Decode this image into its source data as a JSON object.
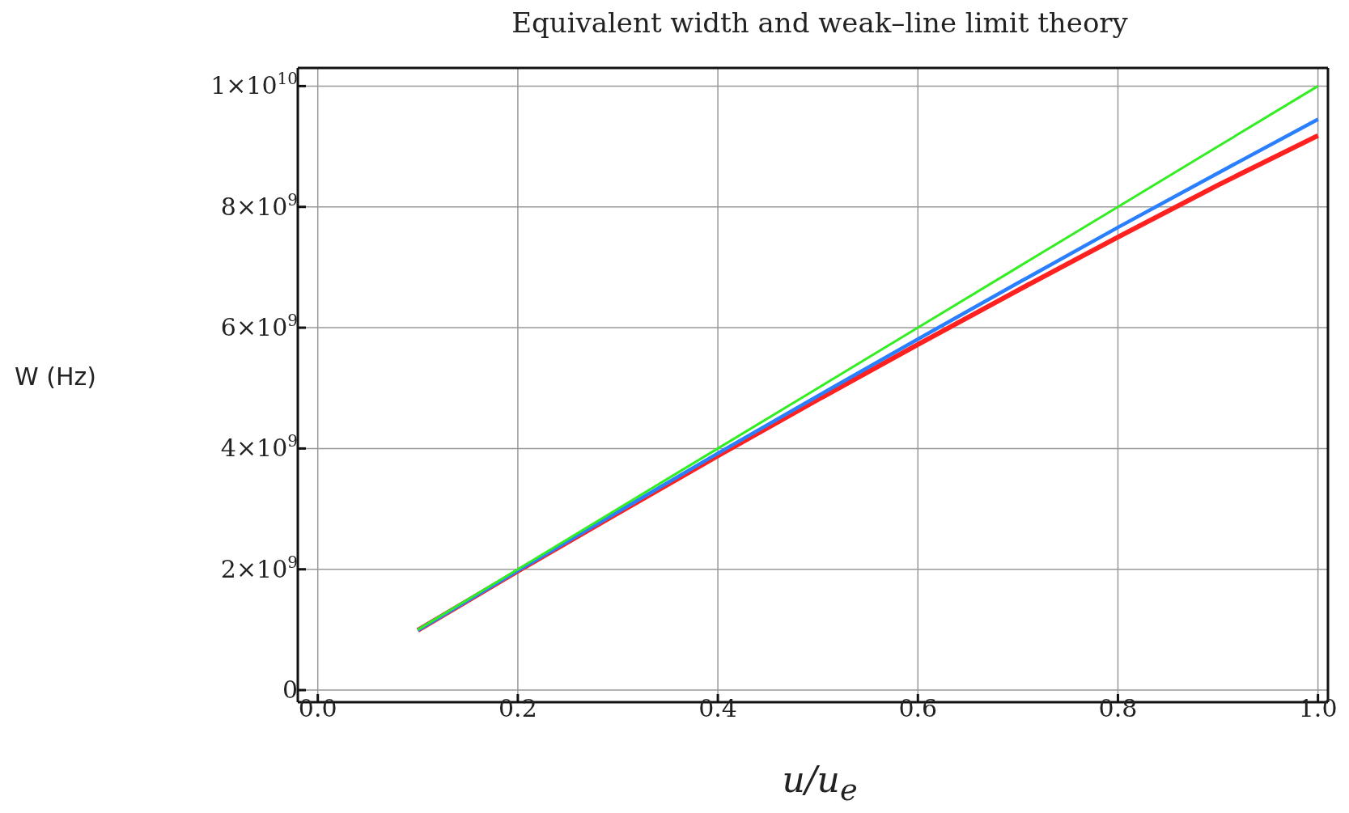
{
  "chart_data": {
    "type": "line",
    "title": "Equivalent width and weak–line limit theory",
    "xlabel": "u/u$_{e}$",
    "ylabel": "W (Hz)",
    "x": [
      0.1,
      0.2,
      0.3,
      0.4,
      0.5,
      0.6,
      0.7,
      0.8,
      0.9,
      1.0
    ],
    "series": [
      {
        "color": "#ff2020",
        "values": [
          990000000,
          1970000000,
          2930000000,
          3880000000,
          4810000000,
          5720000000,
          6620000000,
          7500000000,
          8360000000,
          9180000000
        ]
      },
      {
        "color": "#2a7fff",
        "values": [
          990000000,
          1980000000,
          2950000000,
          3920000000,
          4870000000,
          5810000000,
          6740000000,
          7660000000,
          8560000000,
          9450000000
        ]
      },
      {
        "color": "#33ee22",
        "values": [
          1000000000,
          2000000000,
          3000000000,
          4000000000,
          5000000000,
          6000000000,
          7000000000,
          8000000000,
          9000000000,
          10000000000
        ]
      }
    ],
    "xlim": [
      -0.02,
      1.01
    ],
    "ylim": [
      -200000000,
      10300000000
    ],
    "xticks": [
      {
        "value": 0,
        "label": "0.0"
      },
      {
        "value": 0.2,
        "label": "0.2"
      },
      {
        "value": 0.4,
        "label": "0.4"
      },
      {
        "value": 0.6,
        "label": "0.6"
      },
      {
        "value": 0.8,
        "label": "0.8"
      },
      {
        "value": 1,
        "label": "1.0"
      }
    ],
    "yticks": [
      0,
      {
        "value": 2000000000,
        "label": "2×10$^{9}$"
      },
      {
        "value": 4000000000,
        "label": "4×10$^{9}$"
      },
      {
        "value": 6000000000,
        "label": "6×10$^{9}$"
      },
      {
        "value": 8000000000,
        "label": "8×10$^{9}$"
      },
      {
        "value": 10000000000,
        "label": "1×10$^{10}$"
      }
    ],
    "grid": true,
    "marker": "none",
    "line_style": "solid"
  }
}
